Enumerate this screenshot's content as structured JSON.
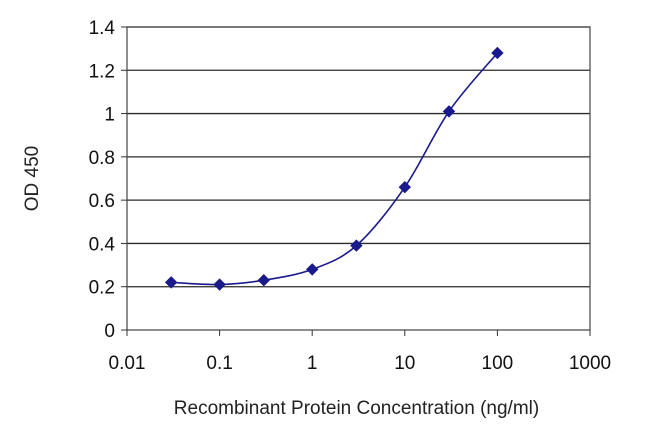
{
  "chart_data": {
    "type": "line",
    "title": "",
    "xlabel": "Recombinant Protein Concentration (ng/ml)",
    "ylabel": "OD 450",
    "x_scale": "log",
    "xlim": [
      0.01,
      1000
    ],
    "ylim": [
      0,
      1.4
    ],
    "x_tick_labels": [
      "0.01",
      "0.1",
      "1",
      "10",
      "100",
      "1000"
    ],
    "x_ticks": [
      0.01,
      0.1,
      1,
      10,
      100,
      1000
    ],
    "y_tick_labels": [
      "0",
      "0.2",
      "0.4",
      "0.6",
      "0.8",
      "1",
      "1.2",
      "1.4"
    ],
    "y_ticks": [
      0,
      0.2,
      0.4,
      0.6,
      0.8,
      1,
      1.2,
      1.4
    ],
    "grid": "horizontal",
    "legend": "none",
    "series": [
      {
        "x": [
          0.03,
          0.1,
          0.3,
          1,
          3,
          10,
          30,
          100
        ],
        "values": [
          0.22,
          0.21,
          0.23,
          0.28,
          0.39,
          0.66,
          1.01,
          1.28
        ],
        "color": "#1a1a8c"
      }
    ]
  }
}
